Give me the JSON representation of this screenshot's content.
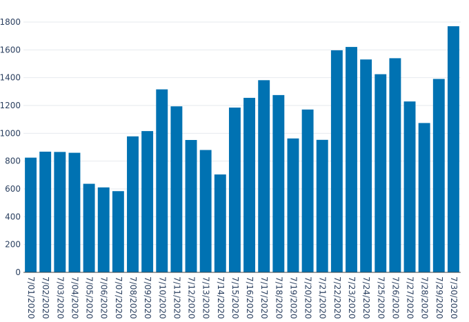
{
  "chart_data": {
    "type": "bar",
    "title": "",
    "xlabel": "",
    "ylabel": "",
    "categories": [
      "7/01/2020",
      "7/02/2020",
      "7/03/2020",
      "7/04/2020",
      "7/05/2020",
      "7/06/2020",
      "7/07/2020",
      "7/08/2020",
      "7/09/2020",
      "7/10/2020",
      "7/11/2020",
      "7/12/2020",
      "7/13/2020",
      "7/14/2020",
      "7/15/2020",
      "7/16/2020",
      "7/17/2020",
      "7/18/2020",
      "7/19/2020",
      "7/20/2020",
      "7/21/2020",
      "7/22/2020",
      "7/23/2020",
      "7/24/2020",
      "7/25/2020",
      "7/26/2020",
      "7/27/2020",
      "7/28/2020",
      "7/29/2020",
      "7/30/2020"
    ],
    "values": [
      825,
      868,
      866,
      860,
      637,
      611,
      584,
      978,
      1016,
      1316,
      1194,
      952,
      880,
      704,
      1185,
      1255,
      1382,
      1275,
      963,
      1171,
      953,
      1597,
      1621,
      1531,
      1425,
      1540,
      1229,
      1074,
      1391,
      1770
    ],
    "ylim": [
      0,
      1800
    ],
    "yticks": [
      0,
      200,
      400,
      600,
      800,
      1000,
      1200,
      1400,
      1600,
      1800
    ],
    "grid": true,
    "bar_color": "#0072b2"
  }
}
